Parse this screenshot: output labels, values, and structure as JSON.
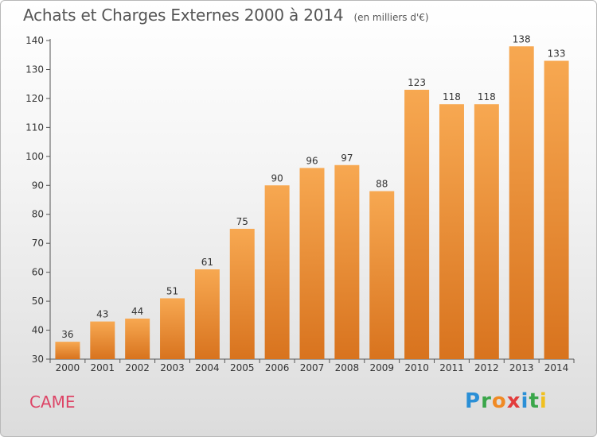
{
  "title": "Achats et Charges Externes 2000 à 2014",
  "unit_note": "(en milliers d'€)",
  "commune": "CAME",
  "brand": {
    "letters": [
      {
        "ch": "P",
        "color": "#2a8fd6"
      },
      {
        "ch": "r",
        "color": "#3aa64a"
      },
      {
        "ch": "o",
        "color": "#f08a24"
      },
      {
        "ch": "x",
        "color": "#e23c3c"
      },
      {
        "ch": "i",
        "color": "#2a8fd6"
      },
      {
        "ch": "t",
        "color": "#3aa64a"
      },
      {
        "ch": "i",
        "color": "#f0c020"
      }
    ]
  },
  "colors": {
    "bar_light": "#f7a851",
    "bar_dark": "#d8731e"
  },
  "chart_data": {
    "type": "bar",
    "categories": [
      "2000",
      "2001",
      "2002",
      "2003",
      "2004",
      "2005",
      "2006",
      "2007",
      "2008",
      "2009",
      "2010",
      "2011",
      "2012",
      "2013",
      "2014"
    ],
    "values": [
      36,
      43,
      44,
      51,
      61,
      75,
      90,
      96,
      97,
      88,
      123,
      118,
      118,
      138,
      133
    ],
    "ylim": [
      30,
      140
    ],
    "yticks": [
      30,
      40,
      50,
      60,
      70,
      80,
      90,
      100,
      110,
      120,
      130,
      140
    ],
    "xlabel": "",
    "ylabel": "",
    "grid": false,
    "legend": "none"
  }
}
